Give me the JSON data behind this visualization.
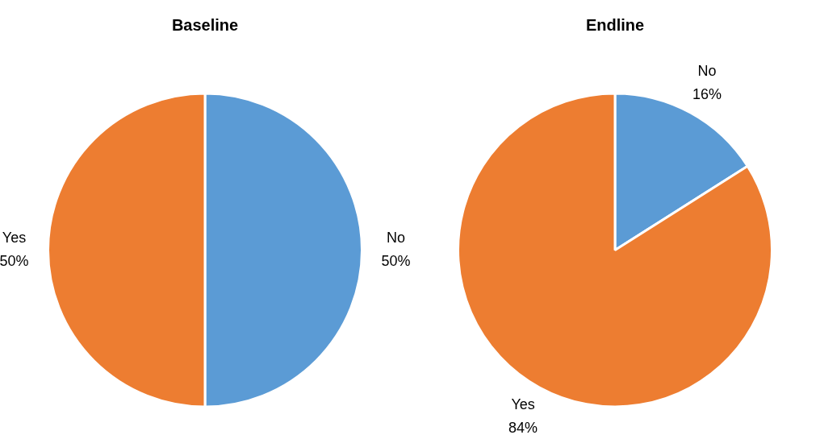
{
  "chart_data": [
    {
      "type": "pie",
      "title": "Baseline",
      "categories": [
        "No",
        "Yes"
      ],
      "values": [
        50,
        50
      ],
      "colors": [
        "#5b9bd5",
        "#ed7d31"
      ],
      "value_labels": [
        "50%",
        "50%"
      ],
      "legend": false
    },
    {
      "type": "pie",
      "title": "Endline",
      "categories": [
        "No",
        "Yes"
      ],
      "values": [
        16,
        84
      ],
      "colors": [
        "#5b9bd5",
        "#ed7d31"
      ],
      "value_labels": [
        "16%",
        "84%"
      ],
      "legend": false
    }
  ]
}
